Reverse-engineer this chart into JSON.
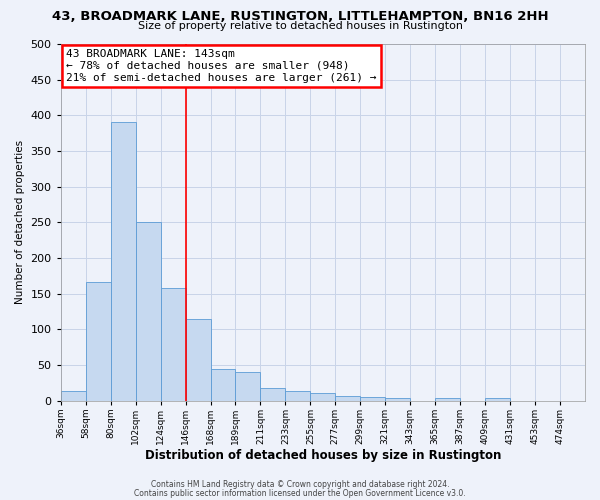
{
  "title": "43, BROADMARK LANE, RUSTINGTON, LITTLEHAMPTON, BN16 2HH",
  "subtitle": "Size of property relative to detached houses in Rustington",
  "bar_values": [
    13,
    167,
    390,
    250,
    158,
    115,
    44,
    40,
    18,
    14,
    11,
    7,
    5,
    3,
    0,
    4,
    0,
    3,
    0,
    0
  ],
  "bar_labels": [
    "36sqm",
    "58sqm",
    "80sqm",
    "102sqm",
    "124sqm",
    "146sqm",
    "168sqm",
    "189sqm",
    "211sqm",
    "233sqm",
    "255sqm",
    "277sqm",
    "299sqm",
    "321sqm",
    "343sqm",
    "365sqm",
    "387sqm",
    "409sqm",
    "431sqm",
    "453sqm",
    "474sqm"
  ],
  "xlabel": "Distribution of detached houses by size in Rustington",
  "ylabel": "Number of detached properties",
  "ylim": [
    0,
    500
  ],
  "yticks": [
    0,
    50,
    100,
    150,
    200,
    250,
    300,
    350,
    400,
    450,
    500
  ],
  "bar_color": "#c6d9f0",
  "bar_edge_color": "#5b9bd5",
  "vline_x": 5,
  "vline_color": "red",
  "annotation_title": "43 BROADMARK LANE: 143sqm",
  "annotation_line1": "← 78% of detached houses are smaller (948)",
  "annotation_line2": "21% of semi-detached houses are larger (261) →",
  "footer1": "Contains HM Land Registry data © Crown copyright and database right 2024.",
  "footer2": "Contains public sector information licensed under the Open Government Licence v3.0.",
  "background_color": "#eef2fa",
  "plot_background": "#eef2fa",
  "grid_color": "#c8d4e8"
}
